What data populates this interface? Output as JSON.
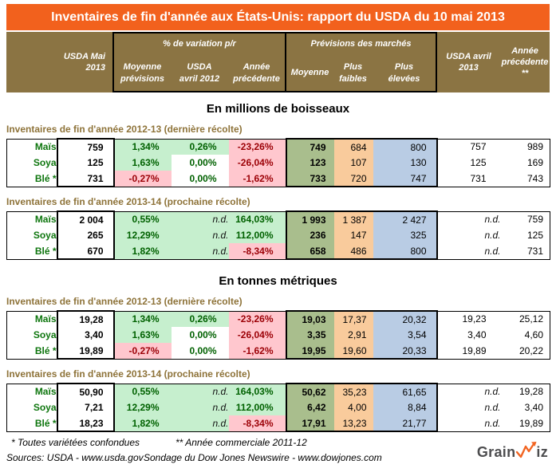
{
  "title": "Inventaires de fin d'année aux États-Unis: rapport du USDA du 10 mai 2013",
  "header": {
    "usda_mai": "USDA Mai\n2013",
    "variation_group": "% de variation p/r",
    "moyenne_previsions": "Moyenne\nprévisions",
    "usda_avril_2012": "USDA\navril 2012",
    "annee_precedente": "Année\nprécédente",
    "previsions_group": "Prévisions des marchés",
    "moyenne": "Moyenne",
    "plus_faibles": "Plus\nfaibles",
    "plus_elevees": "Plus\nélevées",
    "usda_avril_2013": "USDA avril\n2013",
    "annee_precedente_2": "Année\nprécédente\n**"
  },
  "units": [
    {
      "title": "En millions de boisseaux",
      "groups": [
        {
          "label": "Inventaires de fin d'année 2012-13 (dernière récolte)",
          "rows": [
            {
              "label": "Maïs",
              "values": [
                "759",
                "1,34%",
                "0,26%",
                "-23,26%",
                "749",
                "684",
                "800",
                "757",
                "989"
              ],
              "styles": [
                "",
                "g",
                "g",
                "p",
                "",
                "",
                "",
                "",
                ""
              ]
            },
            {
              "label": "Soya",
              "values": [
                "125",
                "1,63%",
                "0,00%",
                "-26,04%",
                "123",
                "107",
                "130",
                "125",
                "169"
              ],
              "styles": [
                "",
                "g",
                "w",
                "p",
                "",
                "",
                "",
                "",
                ""
              ]
            },
            {
              "label": "Blé *",
              "values": [
                "731",
                "-0,27%",
                "0,00%",
                "-1,62%",
                "733",
                "720",
                "747",
                "731",
                "743"
              ],
              "styles": [
                "",
                "p",
                "w",
                "p",
                "",
                "",
                "",
                "",
                ""
              ]
            }
          ]
        },
        {
          "label": "Inventaires de fin d'année 2013-14 (prochaine récolte)",
          "rows": [
            {
              "label": "Maïs",
              "values": [
                "2 004",
                "0,55%",
                "n.d.",
                "164,03%",
                "1 993",
                "1 387",
                "2 427",
                "n.d.",
                "759"
              ],
              "styles": [
                "",
                "g",
                "nd",
                "g",
                "",
                "",
                "",
                "nd",
                ""
              ]
            },
            {
              "label": "Soya",
              "values": [
                "265",
                "12,29%",
                "n.d.",
                "112,00%",
                "236",
                "147",
                "325",
                "n.d.",
                "125"
              ],
              "styles": [
                "",
                "g",
                "nd",
                "g",
                "",
                "",
                "",
                "nd",
                ""
              ]
            },
            {
              "label": "Blé *",
              "values": [
                "670",
                "1,82%",
                "n.d.",
                "-8,34%",
                "658",
                "486",
                "800",
                "n.d.",
                "731"
              ],
              "styles": [
                "",
                "g",
                "nd",
                "p",
                "",
                "",
                "",
                "nd",
                ""
              ]
            }
          ]
        }
      ]
    },
    {
      "title": "En tonnes métriques",
      "groups": [
        {
          "label": "Inventaires de fin d'année 2012-13 (dernière récolte)",
          "rows": [
            {
              "label": "Maïs",
              "values": [
                "19,28",
                "1,34%",
                "0,26%",
                "-23,26%",
                "19,03",
                "17,37",
                "20,32",
                "19,23",
                "25,12"
              ],
              "styles": [
                "",
                "g",
                "g",
                "p",
                "",
                "",
                "",
                "",
                ""
              ]
            },
            {
              "label": "Soya",
              "values": [
                "3,40",
                "1,63%",
                "0,00%",
                "-26,04%",
                "3,35",
                "2,91",
                "3,54",
                "3,40",
                "4,60"
              ],
              "styles": [
                "",
                "g",
                "w",
                "p",
                "",
                "",
                "",
                "",
                ""
              ]
            },
            {
              "label": "Blé *",
              "values": [
                "19,89",
                "-0,27%",
                "0,00%",
                "-1,62%",
                "19,95",
                "19,60",
                "20,33",
                "19,89",
                "20,22"
              ],
              "styles": [
                "",
                "p",
                "w",
                "p",
                "",
                "",
                "",
                "",
                ""
              ]
            }
          ]
        },
        {
          "label": "Inventaires de fin d'année 2013-14 (prochaine récolte)",
          "rows": [
            {
              "label": "Maïs",
              "values": [
                "50,90",
                "0,55%",
                "n.d.",
                "164,03%",
                "50,62",
                "35,23",
                "61,65",
                "n.d.",
                "19,28"
              ],
              "styles": [
                "",
                "g",
                "nd",
                "g",
                "",
                "",
                "",
                "nd",
                ""
              ]
            },
            {
              "label": "Soya",
              "values": [
                "7,21",
                "12,29%",
                "n.d.",
                "112,00%",
                "6,42",
                "4,00",
                "8,84",
                "n.d.",
                "3,40"
              ],
              "styles": [
                "",
                "g",
                "nd",
                "g",
                "",
                "",
                "",
                "nd",
                ""
              ]
            },
            {
              "label": "Blé *",
              "values": [
                "18,23",
                "1,82%",
                "n.d.",
                "-8,34%",
                "17,91",
                "13,23",
                "21,77",
                "n.d.",
                "19,89"
              ],
              "styles": [
                "",
                "g",
                "nd",
                "p",
                "",
                "",
                "",
                "nd",
                ""
              ]
            }
          ]
        }
      ]
    }
  ],
  "footnotes": {
    "note1": "* Toutes variétées confondues",
    "note2": "** Année commerciale 2011-12",
    "sources": "Sources: USDA - www.usda.gov",
    "survey": "Sondage du Dow Jones Newswire - www.dowjones.com"
  },
  "logo": {
    "part1": "Grain",
    "part2": "iz",
    "w_icon": "zigzag-arrow-up"
  },
  "colors": {
    "title_bar_bg": "#F2611D",
    "header_bg": "#8B7443",
    "section_label": "#8E7339",
    "row_label": "#0E760E",
    "pos_bg": "#C6EFCE",
    "pos_text": "#006100",
    "neg_bg": "#FFC7CE",
    "neg_text": "#9C0006",
    "avg_bg": "#A9BE8D",
    "low_bg": "#F9CB9C",
    "high_bg": "#B9CCE4",
    "logo_text": "#4D4D4F",
    "logo_accent": "#F26522"
  }
}
